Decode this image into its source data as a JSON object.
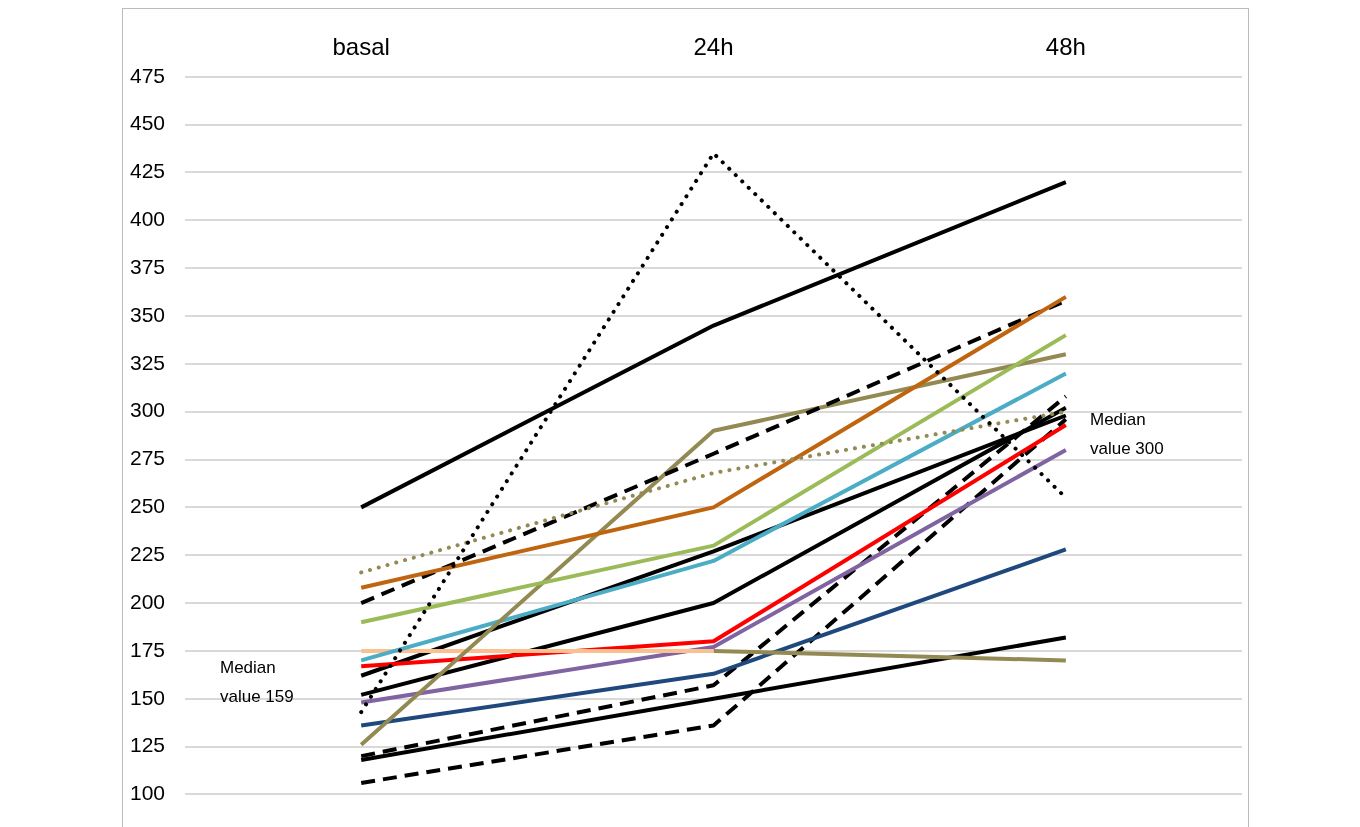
{
  "chart_data": {
    "type": "line",
    "categories": [
      "basal",
      "24h",
      "48h"
    ],
    "series": [
      {
        "color": "#000000",
        "line_style": "solid",
        "values": [
          250,
          345,
          420
        ]
      },
      {
        "color": "#000000",
        "line_style": "dotted",
        "values": [
          143,
          435,
          255
        ]
      },
      {
        "color": "#948a54",
        "line_style": "dotted",
        "values": [
          216,
          268,
          300
        ]
      },
      {
        "color": "#c0650f",
        "line_style": "solid",
        "values": [
          208,
          250,
          360
        ]
      },
      {
        "color": "#000000",
        "line_style": "dashed",
        "values": [
          200,
          278,
          358
        ]
      },
      {
        "color": "#9bbb59",
        "line_style": "solid",
        "values": [
          190,
          230,
          340
        ]
      },
      {
        "color": "#938953",
        "line_style": "solid",
        "values": [
          126,
          290,
          330
        ]
      },
      {
        "color": "#4bacc6",
        "line_style": "solid",
        "values": [
          170,
          222,
          320
        ]
      },
      {
        "color": "#fac090",
        "line_style": "solid",
        "values": [
          175,
          175,
          null
        ]
      },
      {
        "color": "#938953",
        "line_style": "solid",
        "values": [
          null,
          175,
          170
        ]
      },
      {
        "color": "#ff0000",
        "line_style": "solid",
        "values": [
          167,
          180,
          293
        ]
      },
      {
        "color": "#000000",
        "line_style": "solid",
        "values": [
          162,
          227,
          298
        ]
      },
      {
        "color": "#000000",
        "line_style": "solid",
        "values": [
          152,
          200,
          302
        ]
      },
      {
        "color": "#8064a2",
        "line_style": "solid",
        "values": [
          148,
          177,
          280
        ]
      },
      {
        "color": "#1f497d",
        "line_style": "solid",
        "values": [
          136,
          163,
          228
        ]
      },
      {
        "color": "#000000",
        "line_style": "dashed",
        "values": [
          120,
          157,
          308
        ]
      },
      {
        "color": "#000000",
        "line_style": "solid",
        "values": [
          118,
          150,
          182
        ]
      },
      {
        "color": "#000000",
        "line_style": "dashed",
        "values": [
          106,
          136,
          296
        ]
      }
    ],
    "ylim": [
      100,
      475
    ],
    "yticks": [
      100,
      125,
      150,
      175,
      200,
      225,
      250,
      275,
      300,
      325,
      350,
      375,
      400,
      425,
      450,
      475
    ],
    "grid": "y",
    "legend": false,
    "marker": "none",
    "annotations": [
      "Median value 159",
      "Median value 300"
    ]
  }
}
